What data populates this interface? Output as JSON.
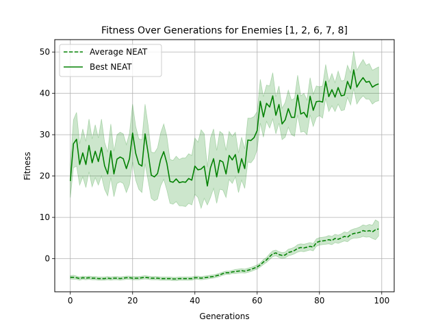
{
  "chart_data": {
    "type": "line",
    "title": "Fitness Over Generations for Enemies [1, 2, 6, 7, 8]",
    "xlabel": "Generations",
    "ylabel": "Fitness",
    "xlim": [
      -5,
      104
    ],
    "ylim": [
      -8,
      53
    ],
    "xticks": [
      0,
      20,
      40,
      60,
      80,
      100
    ],
    "yticks": [
      0,
      10,
      20,
      30,
      40,
      50
    ],
    "grid": true,
    "legend": "top-left",
    "colors": {
      "line": "#008000",
      "band": "#008000"
    },
    "series": [
      {
        "name": "Average NEAT",
        "style": "dashed",
        "x": [
          0,
          1,
          2,
          3,
          4,
          5,
          6,
          7,
          8,
          9,
          10,
          11,
          12,
          13,
          14,
          15,
          16,
          17,
          18,
          19,
          20,
          21,
          22,
          23,
          24,
          25,
          26,
          27,
          28,
          29,
          30,
          31,
          32,
          33,
          34,
          35,
          36,
          37,
          38,
          39,
          40,
          41,
          42,
          43,
          44,
          45,
          46,
          47,
          48,
          49,
          50,
          51,
          52,
          53,
          54,
          55,
          56,
          57,
          58,
          59,
          60,
          61,
          62,
          63,
          64,
          65,
          66,
          67,
          68,
          69,
          70,
          71,
          72,
          73,
          74,
          75,
          76,
          77,
          78,
          79,
          80,
          81,
          82,
          83,
          84,
          85,
          86,
          87,
          88,
          89,
          90,
          91,
          92,
          93,
          94,
          95,
          96,
          97,
          98,
          99
        ],
        "y": [
          -4.5,
          -4.5,
          -4.6,
          -4.8,
          -4.6,
          -4.7,
          -4.6,
          -4.7,
          -4.7,
          -4.8,
          -4.8,
          -4.8,
          -4.7,
          -4.8,
          -4.7,
          -4.7,
          -4.8,
          -4.7,
          -4.6,
          -4.6,
          -4.7,
          -4.7,
          -4.7,
          -4.6,
          -4.5,
          -4.6,
          -4.7,
          -4.7,
          -4.7,
          -4.8,
          -4.8,
          -4.8,
          -4.8,
          -4.9,
          -4.9,
          -4.8,
          -4.8,
          -4.8,
          -4.8,
          -4.8,
          -4.6,
          -4.6,
          -4.7,
          -4.6,
          -4.5,
          -4.4,
          -4.3,
          -4.1,
          -3.9,
          -3.6,
          -3.4,
          -3.4,
          -3.2,
          -3.1,
          -3.0,
          -2.9,
          -3.0,
          -2.8,
          -2.6,
          -2.3,
          -2.0,
          -1.5,
          -0.8,
          -0.3,
          0.5,
          1.2,
          1.4,
          1.0,
          0.8,
          0.9,
          1.5,
          1.7,
          2.0,
          2.5,
          2.7,
          2.6,
          2.8,
          3.0,
          2.8,
          3.9,
          4.2,
          4.3,
          4.4,
          4.6,
          4.4,
          4.9,
          4.7,
          5.0,
          5.4,
          5.2,
          5.8,
          6.1,
          6.2,
          6.4,
          6.8,
          6.6,
          6.8,
          6.5,
          7.0,
          7.2
        ]
      },
      {
        "name": "Best NEAT",
        "style": "solid",
        "x": [
          0,
          1,
          2,
          3,
          4,
          5,
          6,
          7,
          8,
          9,
          10,
          11,
          12,
          13,
          14,
          15,
          16,
          17,
          18,
          19,
          20,
          21,
          22,
          23,
          24,
          25,
          26,
          27,
          28,
          29,
          30,
          31,
          32,
          33,
          34,
          35,
          36,
          37,
          38,
          39,
          40,
          41,
          42,
          43,
          44,
          45,
          46,
          47,
          48,
          49,
          50,
          51,
          52,
          53,
          54,
          55,
          56,
          57,
          58,
          59,
          60,
          61,
          62,
          63,
          64,
          65,
          66,
          67,
          68,
          69,
          70,
          71,
          72,
          73,
          74,
          75,
          76,
          77,
          78,
          79,
          80,
          81,
          82,
          83,
          84,
          85,
          86,
          87,
          88,
          89,
          90,
          91,
          92,
          93,
          94,
          95,
          96,
          97,
          98,
          99
        ],
        "y": [
          18.8,
          27.8,
          28.9,
          22.8,
          25.6,
          22.8,
          27.4,
          23.2,
          26.0,
          23.5,
          26.9,
          22.5,
          20.5,
          26.1,
          20.5,
          24.1,
          24.6,
          24.2,
          21.8,
          24.2,
          30.4,
          25.5,
          22.9,
          22.4,
          30.2,
          25.5,
          20.2,
          19.8,
          20.6,
          24.0,
          25.9,
          23.1,
          18.7,
          18.5,
          19.3,
          18.4,
          18.6,
          18.5,
          19.4,
          19.0,
          22.4,
          21.5,
          21.7,
          22.4,
          17.6,
          22.0,
          24.2,
          19.8,
          23.8,
          23.4,
          20.5,
          25.0,
          23.9,
          25.2,
          20.8,
          24.2,
          21.8,
          28.7,
          28.6,
          29.3,
          31.0,
          38.1,
          34.3,
          37.6,
          36.7,
          39.4,
          34.7,
          37.3,
          32.6,
          33.6,
          36.3,
          34.2,
          34.2,
          39.6,
          35.0,
          35.4,
          34.2,
          39.3,
          35.9,
          38.0,
          38.1,
          37.9,
          42.9,
          39.2,
          40.9,
          39.1,
          41.4,
          39.4,
          39.6,
          42.9,
          41.1,
          45.7,
          41.5,
          42.8,
          43.8,
          42.7,
          42.9,
          41.5,
          42.0,
          42.3
        ]
      }
    ],
    "bands": [
      {
        "series": "Average NEAT",
        "lower": [
          -4.9,
          -5.0,
          -5.0,
          -5.2,
          -5.0,
          -5.1,
          -5.0,
          -5.1,
          -5.1,
          -5.2,
          -5.2,
          -5.2,
          -5.1,
          -5.2,
          -5.1,
          -5.1,
          -5.2,
          -5.1,
          -5.0,
          -5.0,
          -5.1,
          -5.1,
          -5.1,
          -5.0,
          -4.9,
          -5.0,
          -5.1,
          -5.1,
          -5.1,
          -5.2,
          -5.2,
          -5.2,
          -5.2,
          -5.3,
          -5.3,
          -5.2,
          -5.2,
          -5.2,
          -5.2,
          -5.2,
          -5.0,
          -5.0,
          -5.1,
          -5.0,
          -4.9,
          -4.8,
          -4.7,
          -4.5,
          -4.3,
          -4.0,
          -3.8,
          -3.8,
          -3.6,
          -3.6,
          -3.5,
          -3.4,
          -3.5,
          -3.3,
          -3.1,
          -2.8,
          -2.5,
          -2.0,
          -1.4,
          -0.9,
          -0.2,
          0.5,
          0.7,
          0.3,
          0.1,
          0.2,
          0.7,
          0.9,
          1.2,
          1.6,
          1.8,
          1.7,
          1.9,
          2.1,
          1.9,
          3.0,
          3.3,
          3.4,
          3.5,
          3.6,
          3.4,
          3.9,
          3.7,
          4.0,
          4.3,
          4.1,
          4.7,
          5.0,
          5.0,
          5.1,
          5.4,
          5.2,
          5.3,
          4.9,
          4.6,
          5.5
        ],
        "upper": [
          -4.1,
          -4.0,
          -4.2,
          -4.4,
          -4.2,
          -4.3,
          -4.2,
          -4.3,
          -4.3,
          -4.4,
          -4.4,
          -4.4,
          -4.3,
          -4.4,
          -4.3,
          -4.3,
          -4.4,
          -4.3,
          -4.2,
          -4.2,
          -4.3,
          -4.3,
          -4.3,
          -4.2,
          -4.1,
          -4.2,
          -4.3,
          -4.3,
          -4.3,
          -4.4,
          -4.4,
          -4.4,
          -4.4,
          -4.5,
          -4.5,
          -4.4,
          -4.4,
          -4.4,
          -4.4,
          -4.4,
          -4.2,
          -4.2,
          -4.3,
          -4.2,
          -4.1,
          -4.0,
          -3.9,
          -3.7,
          -3.5,
          -3.2,
          -3.0,
          -3.0,
          -2.8,
          -2.6,
          -2.5,
          -2.4,
          -2.5,
          -2.3,
          -2.1,
          -1.8,
          -1.5,
          -1.0,
          -0.2,
          0.3,
          1.2,
          1.9,
          2.1,
          1.7,
          1.5,
          1.6,
          2.3,
          2.5,
          2.8,
          3.4,
          3.6,
          3.5,
          3.7,
          3.9,
          3.7,
          4.8,
          5.1,
          5.2,
          5.3,
          5.6,
          5.4,
          5.9,
          5.7,
          6.0,
          6.5,
          6.3,
          6.9,
          7.2,
          7.4,
          7.7,
          8.2,
          8.0,
          8.3,
          8.1,
          9.4,
          8.9
        ]
      },
      {
        "series": "Best NEAT",
        "lower": [
          14.8,
          22.0,
          22.4,
          17.8,
          19.8,
          17.2,
          21.0,
          17.4,
          19.6,
          17.8,
          20.0,
          16.8,
          15.2,
          19.6,
          15.0,
          18.2,
          18.6,
          18.2,
          16.0,
          18.0,
          23.4,
          19.0,
          16.8,
          16.0,
          23.0,
          18.8,
          14.6,
          14.0,
          14.4,
          17.6,
          19.2,
          16.6,
          13.4,
          13.2,
          13.8,
          12.8,
          12.8,
          12.6,
          13.4,
          13.0,
          15.6,
          14.8,
          12.2,
          14.6,
          13.0,
          14.8,
          17.0,
          13.4,
          16.8,
          16.6,
          14.8,
          19.2,
          18.2,
          19.8,
          16.0,
          19.0,
          17.0,
          23.4,
          23.2,
          24.2,
          26.4,
          32.8,
          29.4,
          33.2,
          31.6,
          33.8,
          30.2,
          32.8,
          28.8,
          29.4,
          31.8,
          30.0,
          29.6,
          34.8,
          30.6,
          30.8,
          30.0,
          34.8,
          32.0,
          34.2,
          34.6,
          34.0,
          38.8,
          35.6,
          37.0,
          35.6,
          37.4,
          35.8,
          36.0,
          39.0,
          37.2,
          41.2,
          37.4,
          38.6,
          39.4,
          38.6,
          38.6,
          37.4,
          38.0,
          38.2
        ],
        "upper": [
          22.8,
          33.6,
          35.4,
          27.8,
          31.4,
          28.4,
          33.8,
          29.0,
          32.4,
          29.2,
          33.8,
          28.2,
          25.8,
          32.6,
          26.0,
          30.0,
          30.6,
          30.2,
          27.6,
          30.4,
          37.4,
          32.0,
          29.0,
          28.8,
          37.4,
          32.2,
          25.8,
          25.6,
          26.8,
          30.4,
          32.6,
          29.6,
          24.0,
          23.8,
          24.8,
          24.0,
          24.4,
          24.4,
          25.4,
          25.0,
          29.2,
          28.2,
          31.2,
          30.2,
          22.2,
          29.2,
          31.4,
          26.2,
          30.8,
          30.2,
          26.2,
          30.8,
          29.6,
          30.6,
          25.6,
          29.4,
          26.6,
          34.0,
          34.0,
          34.4,
          35.6,
          43.4,
          39.2,
          42.0,
          41.8,
          45.0,
          39.2,
          41.8,
          36.4,
          37.8,
          40.8,
          38.4,
          38.8,
          44.4,
          39.4,
          40.0,
          38.4,
          43.8,
          39.8,
          41.8,
          41.6,
          41.8,
          47.0,
          42.8,
          44.8,
          42.6,
          45.4,
          43.0,
          43.2,
          46.8,
          45.0,
          50.2,
          45.6,
          47.0,
          48.2,
          46.8,
          47.2,
          45.6,
          46.0,
          46.4
        ]
      }
    ]
  }
}
